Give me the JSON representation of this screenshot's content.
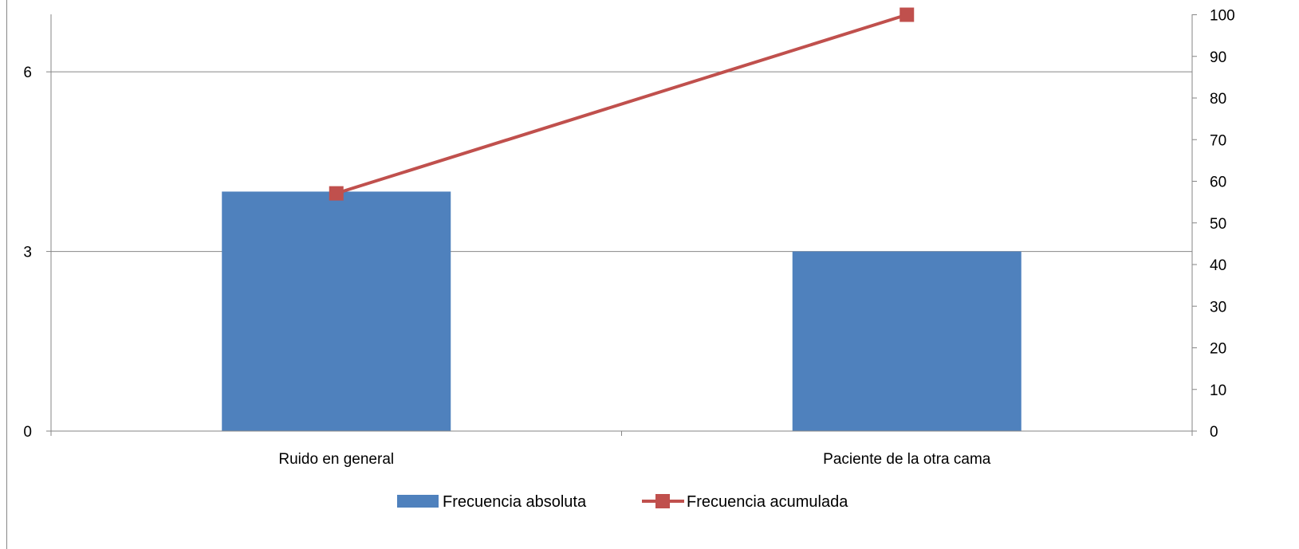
{
  "chart_data": {
    "type": "bar",
    "categories": [
      "Ruido en general",
      "Paciente de la otra cama"
    ],
    "series": [
      {
        "name": "Frecuencia absoluta",
        "kind": "bar",
        "axis": "left",
        "color": "#4F81BD",
        "values": [
          4,
          3
        ]
      },
      {
        "name": "Frecuencia acumulada",
        "kind": "line",
        "axis": "right",
        "color": "#C0504D",
        "marker": "square",
        "values": [
          57.1,
          100
        ]
      }
    ],
    "y_left": {
      "min": 0,
      "max": 7.2,
      "ticks": [
        0,
        3,
        6
      ]
    },
    "y_right": {
      "min": 0,
      "max": 100,
      "ticks": [
        0,
        10,
        20,
        30,
        40,
        50,
        60,
        70,
        80,
        90,
        100
      ]
    },
    "grid": true,
    "legend_position": "bottom"
  }
}
